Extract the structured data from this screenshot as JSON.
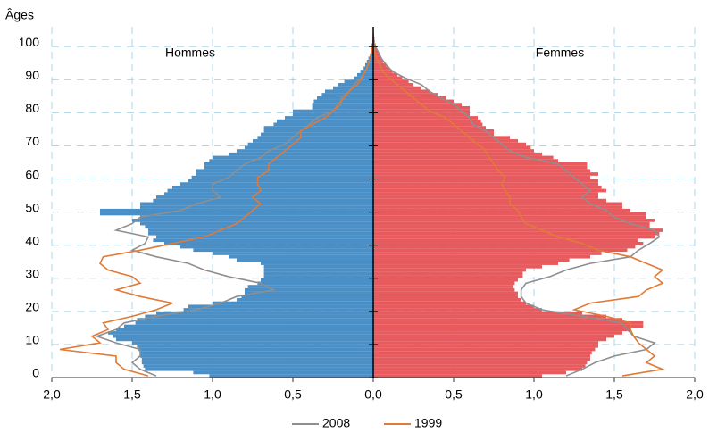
{
  "chart_data": {
    "type": "pyramid",
    "y_label": "Âges",
    "left_label": "Hommes",
    "right_label": "Femmes",
    "xlim": [
      -2,
      2
    ],
    "ylim": [
      0,
      106
    ],
    "xticks": [
      {
        "value": -2,
        "label": "2,0"
      },
      {
        "value": -1.5,
        "label": "1,5"
      },
      {
        "value": -1,
        "label": "1,0"
      },
      {
        "value": -0.5,
        "label": "0,5"
      },
      {
        "value": 0,
        "label": "0,0"
      },
      {
        "value": 0.5,
        "label": "0,5"
      },
      {
        "value": 1,
        "label": "1,0"
      },
      {
        "value": 1.5,
        "label": "1,5"
      },
      {
        "value": 2,
        "label": "2,0"
      }
    ],
    "yticks": [
      0,
      10,
      20,
      30,
      40,
      50,
      60,
      70,
      80,
      90,
      100
    ],
    "grid": true,
    "ages": [
      0,
      1,
      2,
      3,
      4,
      5,
      6,
      7,
      8,
      9,
      10,
      11,
      12,
      13,
      14,
      15,
      16,
      17,
      18,
      19,
      20,
      21,
      22,
      23,
      24,
      25,
      26,
      27,
      28,
      29,
      30,
      31,
      32,
      33,
      34,
      35,
      36,
      37,
      38,
      39,
      40,
      41,
      42,
      43,
      44,
      45,
      46,
      47,
      48,
      49,
      50,
      51,
      52,
      53,
      54,
      55,
      56,
      57,
      58,
      59,
      60,
      61,
      62,
      63,
      64,
      65,
      66,
      67,
      68,
      69,
      70,
      71,
      72,
      73,
      74,
      75,
      76,
      77,
      78,
      79,
      80,
      81,
      82,
      83,
      84,
      85,
      86,
      87,
      88,
      89,
      90,
      91,
      92,
      93,
      94,
      95,
      96,
      97,
      98,
      99,
      100,
      101,
      102,
      103,
      104
    ],
    "left_bars": {
      "color": "#4b8fc7",
      "values": [
        1.02,
        1.12,
        1.42,
        1.43,
        1.44,
        1.44,
        1.45,
        1.45,
        1.46,
        1.47,
        1.5,
        1.6,
        1.62,
        1.65,
        1.6,
        1.55,
        1.48,
        1.47,
        1.42,
        1.35,
        1.18,
        1.15,
        1.0,
        0.85,
        0.82,
        0.8,
        0.8,
        0.78,
        0.72,
        0.7,
        0.68,
        0.68,
        0.68,
        0.68,
        0.7,
        0.85,
        0.9,
        1.0,
        1.12,
        1.2,
        1.3,
        1.37,
        1.35,
        1.4,
        1.4,
        1.42,
        1.45,
        1.5,
        1.45,
        1.7,
        1.7,
        1.45,
        1.45,
        1.37,
        1.35,
        1.3,
        1.28,
        1.25,
        1.2,
        1.15,
        1.13,
        1.1,
        1.1,
        1.05,
        1.05,
        1.02,
        1.0,
        0.9,
        0.85,
        0.8,
        0.78,
        0.75,
        0.72,
        0.7,
        0.68,
        0.68,
        0.62,
        0.6,
        0.55,
        0.5,
        0.5,
        0.38,
        0.38,
        0.37,
        0.35,
        0.32,
        0.3,
        0.25,
        0.22,
        0.18,
        0.12,
        0.1,
        0.08,
        0.06,
        0.05,
        0.04,
        0.03,
        0.02,
        0.015,
        0.01,
        0.01,
        0.005,
        0.004,
        0.003,
        0.002
      ]
    },
    "right_bars": {
      "color": "#e75b5e",
      "values": [
        1.05,
        1.2,
        1.3,
        1.32,
        1.33,
        1.35,
        1.35,
        1.36,
        1.38,
        1.4,
        1.4,
        1.45,
        1.5,
        1.55,
        1.6,
        1.68,
        1.68,
        1.55,
        1.45,
        1.3,
        1.05,
        1.0,
        0.95,
        0.92,
        0.9,
        0.9,
        0.88,
        0.87,
        0.88,
        0.9,
        0.93,
        0.93,
        0.95,
        1.05,
        1.15,
        1.22,
        1.35,
        1.42,
        1.58,
        1.63,
        1.68,
        1.65,
        1.75,
        1.78,
        1.8,
        1.72,
        1.72,
        1.75,
        1.7,
        1.7,
        1.6,
        1.55,
        1.55,
        1.45,
        1.4,
        1.4,
        1.45,
        1.42,
        1.4,
        1.4,
        1.35,
        1.4,
        1.35,
        1.33,
        1.33,
        1.15,
        1.12,
        1.05,
        1.0,
        0.98,
        0.95,
        0.9,
        0.85,
        0.75,
        0.75,
        0.7,
        0.68,
        0.67,
        0.65,
        0.6,
        0.6,
        0.6,
        0.55,
        0.5,
        0.45,
        0.4,
        0.35,
        0.3,
        0.25,
        0.22,
        0.18,
        0.15,
        0.12,
        0.1,
        0.08,
        0.06,
        0.05,
        0.04,
        0.03,
        0.02,
        0.015,
        0.01,
        0.008,
        0.005,
        0.003
      ]
    },
    "line_ages": [
      0,
      2,
      4,
      6,
      8,
      10,
      12,
      14,
      16,
      18,
      20,
      22,
      24,
      26,
      28,
      30,
      32,
      34,
      36,
      38,
      40,
      42,
      44,
      46,
      48,
      50,
      52,
      54,
      56,
      58,
      60,
      62,
      64,
      66,
      68,
      70,
      72,
      74,
      76,
      78,
      80,
      82,
      84,
      86,
      88,
      90,
      92,
      94,
      96,
      98,
      100
    ],
    "series": [
      {
        "name": "2008",
        "color": "#8f8f8f",
        "left": [
          1.35,
          1.45,
          1.5,
          1.45,
          1.45,
          1.6,
          1.72,
          1.6,
          1.55,
          1.35,
          1.1,
          0.95,
          0.85,
          0.62,
          0.7,
          0.9,
          1.05,
          1.15,
          1.35,
          1.5,
          1.42,
          1.4,
          1.6,
          1.5,
          1.45,
          1.2,
          1.1,
          0.95,
          1.0,
          1.0,
          0.9,
          0.85,
          0.8,
          0.7,
          0.65,
          0.55,
          0.5,
          0.45,
          0.4,
          0.35,
          0.25,
          0.2,
          0.2,
          0.15,
          0.12,
          0.08,
          0.05,
          0.03,
          0.02,
          0.01,
          0.005
        ],
        "right": [
          1.2,
          1.3,
          1.38,
          1.5,
          1.7,
          1.75,
          1.62,
          1.58,
          1.55,
          1.3,
          1.05,
          0.95,
          0.92,
          0.92,
          0.95,
          1.1,
          1.2,
          1.35,
          1.6,
          1.65,
          1.72,
          1.78,
          1.75,
          1.6,
          1.5,
          1.45,
          1.35,
          1.3,
          1.35,
          1.3,
          1.25,
          1.2,
          1.15,
          0.95,
          0.85,
          0.8,
          0.75,
          0.7,
          0.62,
          0.6,
          0.55,
          0.5,
          0.42,
          0.35,
          0.3,
          0.2,
          0.12,
          0.08,
          0.05,
          0.03,
          0.01
        ]
      },
      {
        "name": "1999",
        "color": "#e07a36",
        "left": [
          1.4,
          1.55,
          1.6,
          1.6,
          1.95,
          1.7,
          1.75,
          1.65,
          1.68,
          1.5,
          1.35,
          1.25,
          1.45,
          1.6,
          1.45,
          1.5,
          1.65,
          1.7,
          1.68,
          1.45,
          1.25,
          1.05,
          0.95,
          0.85,
          0.8,
          0.75,
          0.7,
          0.75,
          0.7,
          0.72,
          0.72,
          0.65,
          0.65,
          0.6,
          0.55,
          0.5,
          0.45,
          0.45,
          0.38,
          0.3,
          0.25,
          0.22,
          0.18,
          0.15,
          0.1,
          0.07,
          0.05,
          0.03,
          0.02,
          0.01,
          0.005
        ],
        "right": [
          1.55,
          1.8,
          1.7,
          1.75,
          1.7,
          1.65,
          1.62,
          1.6,
          1.6,
          1.45,
          1.25,
          1.35,
          1.65,
          1.7,
          1.8,
          1.75,
          1.8,
          1.7,
          1.6,
          1.4,
          1.3,
          1.15,
          1.05,
          0.95,
          0.92,
          0.9,
          0.85,
          0.85,
          0.82,
          0.8,
          0.82,
          0.78,
          0.75,
          0.72,
          0.7,
          0.65,
          0.6,
          0.55,
          0.5,
          0.45,
          0.35,
          0.3,
          0.25,
          0.2,
          0.15,
          0.1,
          0.06,
          0.04,
          0.02,
          0.01,
          0.005
        ]
      }
    ]
  }
}
